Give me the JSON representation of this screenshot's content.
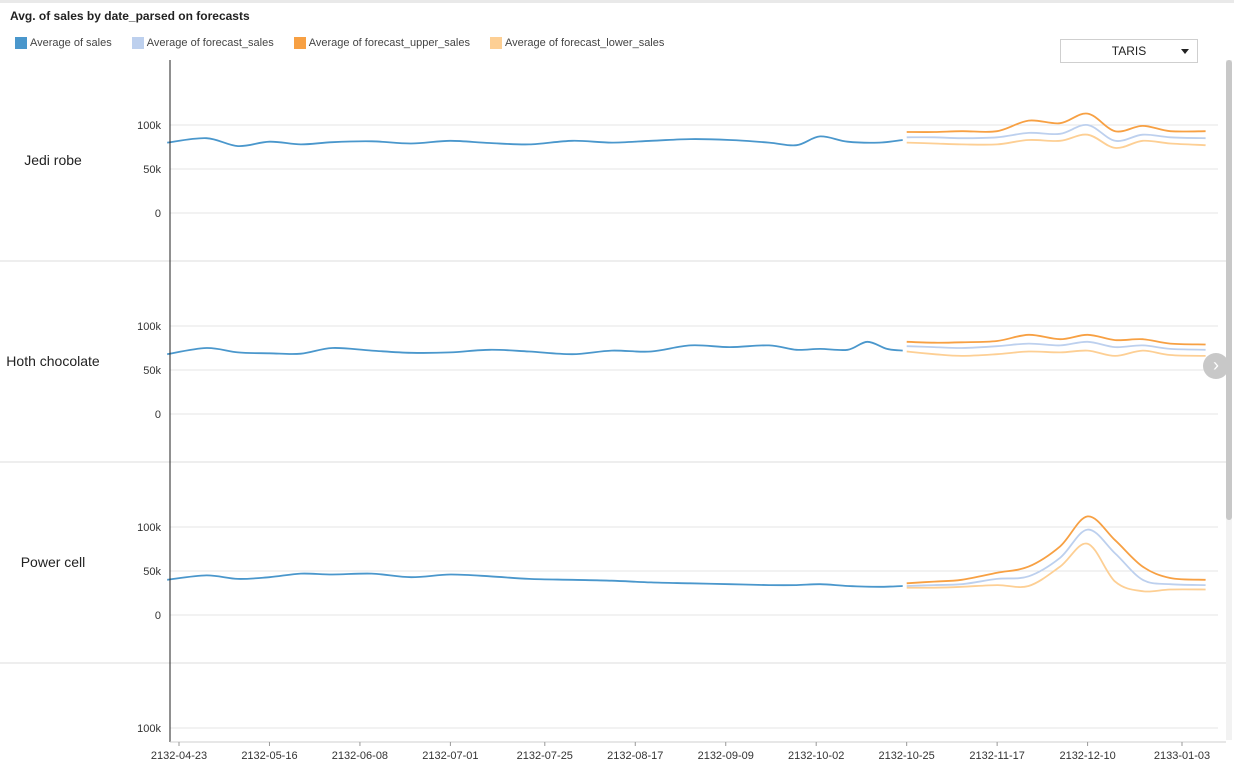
{
  "title": "Avg. of sales by date_parsed on forecasts",
  "filter": {
    "selected": "TARIS"
  },
  "legend": [
    {
      "label": "Average of sales",
      "color": "#4a97cc"
    },
    {
      "label": "Average of forecast_sales",
      "color": "#bdd0ee"
    },
    {
      "label": "Average of forecast_upper_sales",
      "color": "#f7a043"
    },
    {
      "label": "Average of forecast_lower_sales",
      "color": "#fdcf94"
    }
  ],
  "chart_data": {
    "type": "line",
    "title": "Avg. of sales by date_parsed on forecasts",
    "x_ticks": [
      "2132-04-23",
      "2132-05-16",
      "2132-06-08",
      "2132-07-01",
      "2132-07-25",
      "2132-08-17",
      "2132-09-09",
      "2132-10-02",
      "2132-10-25",
      "2132-11-17",
      "2132-12-10",
      "2133-01-03"
    ],
    "y_ticks": [
      "0",
      "50k",
      "100k"
    ],
    "ylim": [
      0,
      100000
    ],
    "grid": true,
    "legend_position": "top-left",
    "facets": [
      {
        "name": "Jedi robe",
        "series": [
          {
            "name": "Average of sales",
            "color": "#4a97cc",
            "points": [
              [
                "2132-04-20",
                80000
              ],
              [
                "2132-04-30",
                85000
              ],
              [
                "2132-05-08",
                76000
              ],
              [
                "2132-05-16",
                81000
              ],
              [
                "2132-05-24",
                78000
              ],
              [
                "2132-06-01",
                80500
              ],
              [
                "2132-06-11",
                81500
              ],
              [
                "2132-06-21",
                79000
              ],
              [
                "2132-07-01",
                82000
              ],
              [
                "2132-07-11",
                79500
              ],
              [
                "2132-07-21",
                78000
              ],
              [
                "2132-08-01",
                82000
              ],
              [
                "2132-08-11",
                80000
              ],
              [
                "2132-08-21",
                82000
              ],
              [
                "2132-08-31",
                84000
              ],
              [
                "2132-09-10",
                83000
              ],
              [
                "2132-09-20",
                80000
              ],
              [
                "2132-09-27",
                77000
              ],
              [
                "2132-10-03",
                87000
              ],
              [
                "2132-10-10",
                81000
              ],
              [
                "2132-10-18",
                80000
              ],
              [
                "2132-10-24",
                83000
              ]
            ]
          },
          {
            "name": "Average of forecast_sales",
            "color": "#bdd0ee",
            "points": [
              [
                "2132-10-25",
                86000
              ],
              [
                "2132-11-01",
                86000
              ],
              [
                "2132-11-08",
                85000
              ],
              [
                "2132-11-17",
                86000
              ],
              [
                "2132-11-25",
                91000
              ],
              [
                "2132-12-03",
                90000
              ],
              [
                "2132-12-10",
                100000
              ],
              [
                "2132-12-17",
                82000
              ],
              [
                "2132-12-24",
                89000
              ],
              [
                "2132-12-31",
                86000
              ],
              [
                "2133-01-09",
                85000
              ]
            ]
          },
          {
            "name": "Average of forecast_upper_sales",
            "color": "#f7a043",
            "points": [
              [
                "2132-10-25",
                92000
              ],
              [
                "2132-11-01",
                92000
              ],
              [
                "2132-11-08",
                93000
              ],
              [
                "2132-11-17",
                93000
              ],
              [
                "2132-11-25",
                105000
              ],
              [
                "2132-12-03",
                102000
              ],
              [
                "2132-12-10",
                113000
              ],
              [
                "2132-12-17",
                93000
              ],
              [
                "2132-12-24",
                99000
              ],
              [
                "2132-12-31",
                93000
              ],
              [
                "2133-01-09",
                93000
              ]
            ]
          },
          {
            "name": "Average of forecast_lower_sales",
            "color": "#fdcf94",
            "points": [
              [
                "2132-10-25",
                80000
              ],
              [
                "2132-11-01",
                79000
              ],
              [
                "2132-11-08",
                78000
              ],
              [
                "2132-11-17",
                78000
              ],
              [
                "2132-11-25",
                83000
              ],
              [
                "2132-12-03",
                82000
              ],
              [
                "2132-12-10",
                89000
              ],
              [
                "2132-12-17",
                74000
              ],
              [
                "2132-12-24",
                82000
              ],
              [
                "2132-12-31",
                79000
              ],
              [
                "2133-01-09",
                77000
              ]
            ]
          }
        ]
      },
      {
        "name": "Hoth chocolate",
        "series": [
          {
            "name": "Average of sales",
            "color": "#4a97cc",
            "points": [
              [
                "2132-04-20",
                68000
              ],
              [
                "2132-04-30",
                75000
              ],
              [
                "2132-05-08",
                70000
              ],
              [
                "2132-05-16",
                69000
              ],
              [
                "2132-05-24",
                68500
              ],
              [
                "2132-06-01",
                75000
              ],
              [
                "2132-06-11",
                72000
              ],
              [
                "2132-06-21",
                69500
              ],
              [
                "2132-07-01",
                70000
              ],
              [
                "2132-07-11",
                73000
              ],
              [
                "2132-07-21",
                71000
              ],
              [
                "2132-08-01",
                68000
              ],
              [
                "2132-08-11",
                72000
              ],
              [
                "2132-08-21",
                71000
              ],
              [
                "2132-08-31",
                78000
              ],
              [
                "2132-09-10",
                76000
              ],
              [
                "2132-09-20",
                78000
              ],
              [
                "2132-09-27",
                73000
              ],
              [
                "2132-10-03",
                74000
              ],
              [
                "2132-10-10",
                73000
              ],
              [
                "2132-10-15",
                82000
              ],
              [
                "2132-10-20",
                74000
              ],
              [
                "2132-10-24",
                72000
              ]
            ]
          },
          {
            "name": "Average of forecast_sales",
            "color": "#bdd0ee",
            "points": [
              [
                "2132-10-25",
                77000
              ],
              [
                "2132-11-01",
                76000
              ],
              [
                "2132-11-08",
                75000
              ],
              [
                "2132-11-17",
                77000
              ],
              [
                "2132-11-25",
                80000
              ],
              [
                "2132-12-03",
                78000
              ],
              [
                "2132-12-10",
                82000
              ],
              [
                "2132-12-17",
                76000
              ],
              [
                "2132-12-24",
                78000
              ],
              [
                "2132-12-31",
                74000
              ],
              [
                "2133-01-09",
                73000
              ]
            ]
          },
          {
            "name": "Average of forecast_upper_sales",
            "color": "#f7a043",
            "points": [
              [
                "2132-10-25",
                82000
              ],
              [
                "2132-11-01",
                81000
              ],
              [
                "2132-11-08",
                81500
              ],
              [
                "2132-11-17",
                83000
              ],
              [
                "2132-11-25",
                90000
              ],
              [
                "2132-12-03",
                85000
              ],
              [
                "2132-12-10",
                90000
              ],
              [
                "2132-12-17",
                84000
              ],
              [
                "2132-12-24",
                85000
              ],
              [
                "2132-12-31",
                80000
              ],
              [
                "2133-01-09",
                79000
              ]
            ]
          },
          {
            "name": "Average of forecast_lower_sales",
            "color": "#fdcf94",
            "points": [
              [
                "2132-10-25",
                71000
              ],
              [
                "2132-11-01",
                68000
              ],
              [
                "2132-11-08",
                66000
              ],
              [
                "2132-11-17",
                68000
              ],
              [
                "2132-11-25",
                71000
              ],
              [
                "2132-12-03",
                70000
              ],
              [
                "2132-12-10",
                72000
              ],
              [
                "2132-12-17",
                66000
              ],
              [
                "2132-12-24",
                72000
              ],
              [
                "2132-12-31",
                67000
              ],
              [
                "2133-01-09",
                66000
              ]
            ]
          }
        ]
      },
      {
        "name": "Power cell",
        "series": [
          {
            "name": "Average of sales",
            "color": "#4a97cc",
            "points": [
              [
                "2132-04-20",
                40000
              ],
              [
                "2132-04-30",
                45000
              ],
              [
                "2132-05-08",
                41000
              ],
              [
                "2132-05-16",
                43000
              ],
              [
                "2132-05-24",
                47000
              ],
              [
                "2132-06-01",
                46000
              ],
              [
                "2132-06-11",
                47000
              ],
              [
                "2132-06-21",
                43000
              ],
              [
                "2132-07-01",
                46000
              ],
              [
                "2132-07-11",
                44000
              ],
              [
                "2132-07-21",
                41000
              ],
              [
                "2132-08-01",
                40000
              ],
              [
                "2132-08-11",
                39000
              ],
              [
                "2132-08-21",
                37000
              ],
              [
                "2132-08-31",
                36000
              ],
              [
                "2132-09-10",
                35000
              ],
              [
                "2132-09-20",
                34000
              ],
              [
                "2132-09-27",
                34000
              ],
              [
                "2132-10-03",
                35000
              ],
              [
                "2132-10-10",
                33000
              ],
              [
                "2132-10-18",
                32000
              ],
              [
                "2132-10-24",
                33000
              ]
            ]
          },
          {
            "name": "Average of forecast_sales",
            "color": "#bdd0ee",
            "points": [
              [
                "2132-10-25",
                33000
              ],
              [
                "2132-11-01",
                34000
              ],
              [
                "2132-11-08",
                35000
              ],
              [
                "2132-11-17",
                41000
              ],
              [
                "2132-11-25",
                44000
              ],
              [
                "2132-12-03",
                65000
              ],
              [
                "2132-12-10",
                97000
              ],
              [
                "2132-12-17",
                70000
              ],
              [
                "2132-12-24",
                40000
              ],
              [
                "2132-12-31",
                35000
              ],
              [
                "2133-01-09",
                34000
              ]
            ]
          },
          {
            "name": "Average of forecast_upper_sales",
            "color": "#f7a043",
            "points": [
              [
                "2132-10-25",
                36000
              ],
              [
                "2132-11-01",
                38000
              ],
              [
                "2132-11-08",
                40000
              ],
              [
                "2132-11-17",
                48000
              ],
              [
                "2132-11-25",
                55000
              ],
              [
                "2132-12-03",
                78000
              ],
              [
                "2132-12-10",
                112000
              ],
              [
                "2132-12-17",
                85000
              ],
              [
                "2132-12-24",
                55000
              ],
              [
                "2132-12-31",
                42000
              ],
              [
                "2133-01-09",
                40000
              ]
            ]
          },
          {
            "name": "Average of forecast_lower_sales",
            "color": "#fdcf94",
            "points": [
              [
                "2132-10-25",
                31000
              ],
              [
                "2132-11-01",
                31000
              ],
              [
                "2132-11-08",
                32000
              ],
              [
                "2132-11-17",
                34000
              ],
              [
                "2132-11-25",
                33000
              ],
              [
                "2132-12-03",
                55000
              ],
              [
                "2132-12-10",
                81000
              ],
              [
                "2132-12-17",
                38000
              ],
              [
                "2132-12-24",
                27000
              ],
              [
                "2132-12-31",
                29000
              ],
              [
                "2133-01-09",
                29000
              ]
            ]
          }
        ]
      },
      {
        "name": "",
        "series": []
      }
    ]
  }
}
